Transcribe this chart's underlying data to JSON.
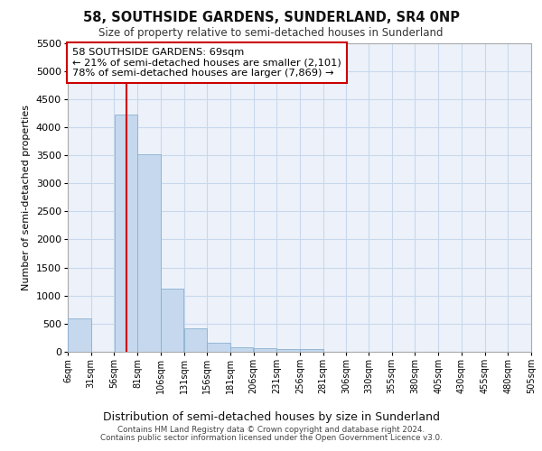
{
  "title_line1": "58, SOUTHSIDE GARDENS, SUNDERLAND, SR4 0NP",
  "title_line2": "Size of property relative to semi-detached houses in Sunderland",
  "xlabel": "Distribution of semi-detached houses by size in Sunderland",
  "ylabel": "Number of semi-detached properties",
  "footer_line1": "Contains HM Land Registry data © Crown copyright and database right 2024.",
  "footer_line2": "Contains public sector information licensed under the Open Government Licence v3.0.",
  "annotation_title": "58 SOUTHSIDE GARDENS: 69sqm",
  "annotation_line1": "← 21% of semi-detached houses are smaller (2,101)",
  "annotation_line2": "78% of semi-detached houses are larger (7,869) →",
  "property_size": 69,
  "bar_color": "#c5d8ed",
  "bar_edge_color": "#8ab0d0",
  "vline_color": "#cc0000",
  "grid_color": "#c8d8ec",
  "background_color": "#ffffff",
  "ax_background": "#edf2fa",
  "ylim_max": 5500,
  "yticks": [
    0,
    500,
    1000,
    1500,
    2000,
    2500,
    3000,
    3500,
    4000,
    4500,
    5000,
    5500
  ],
  "bins": [
    6,
    31,
    56,
    81,
    106,
    131,
    156,
    181,
    206,
    231,
    256,
    281,
    306,
    330,
    355,
    380,
    405,
    430,
    455,
    480,
    505
  ],
  "bin_labels": [
    "6sqm",
    "31sqm",
    "56sqm",
    "81sqm",
    "106sqm",
    "131sqm",
    "156sqm",
    "181sqm",
    "206sqm",
    "231sqm",
    "256sqm",
    "281sqm",
    "306sqm",
    "330sqm",
    "355sqm",
    "380sqm",
    "405sqm",
    "430sqm",
    "455sqm",
    "480sqm",
    "505sqm"
  ],
  "counts": [
    590,
    0,
    4230,
    3510,
    1120,
    420,
    155,
    80,
    60,
    55,
    55,
    0,
    0,
    0,
    0,
    0,
    0,
    0,
    0,
    0
  ]
}
